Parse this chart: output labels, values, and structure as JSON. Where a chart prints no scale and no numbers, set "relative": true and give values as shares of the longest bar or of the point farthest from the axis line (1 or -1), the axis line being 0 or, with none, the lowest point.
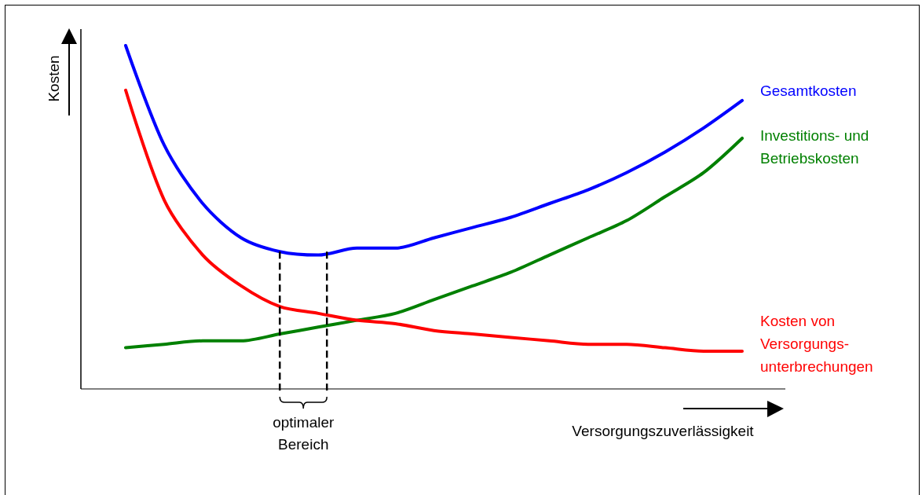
{
  "chart_data": {
    "type": "line",
    "relative": true,
    "xlabel": "Versorgungszuverlässigkeit",
    "ylabel": "Kosten",
    "annotations": [
      "optimaler Bereich"
    ],
    "categories": [
      null,
      null,
      null,
      null,
      null,
      null,
      null,
      null,
      null,
      null,
      null,
      null,
      null,
      null,
      null,
      null,
      null
    ],
    "marker": "none",
    "line_style": "solid",
    "grid": false,
    "legend": false,
    "series": [
      {
        "name": "Gesamtkosten",
        "color": "#0000ff",
        "values": [
          1.0,
          0.71,
          0.54,
          0.44,
          0.4,
          0.39,
          0.41,
          0.41,
          0.44,
          0.47,
          0.5,
          0.54,
          0.58,
          0.63,
          0.69,
          0.76,
          0.84
        ]
      },
      {
        "name": "Investitions- und Betriebskosten",
        "color": "#008000",
        "values": [
          0.12,
          0.13,
          0.14,
          0.14,
          0.16,
          0.18,
          0.2,
          0.22,
          0.26,
          0.3,
          0.34,
          0.39,
          0.44,
          0.49,
          0.56,
          0.63,
          0.73
        ]
      },
      {
        "name": "Kosten von Versorgungs-unterbrechungen",
        "color": "#ff0000",
        "values": [
          0.87,
          0.55,
          0.39,
          0.3,
          0.24,
          0.22,
          0.2,
          0.19,
          0.17,
          0.16,
          0.15,
          0.14,
          0.13,
          0.13,
          0.12,
          0.11,
          0.11
        ]
      }
    ]
  }
}
